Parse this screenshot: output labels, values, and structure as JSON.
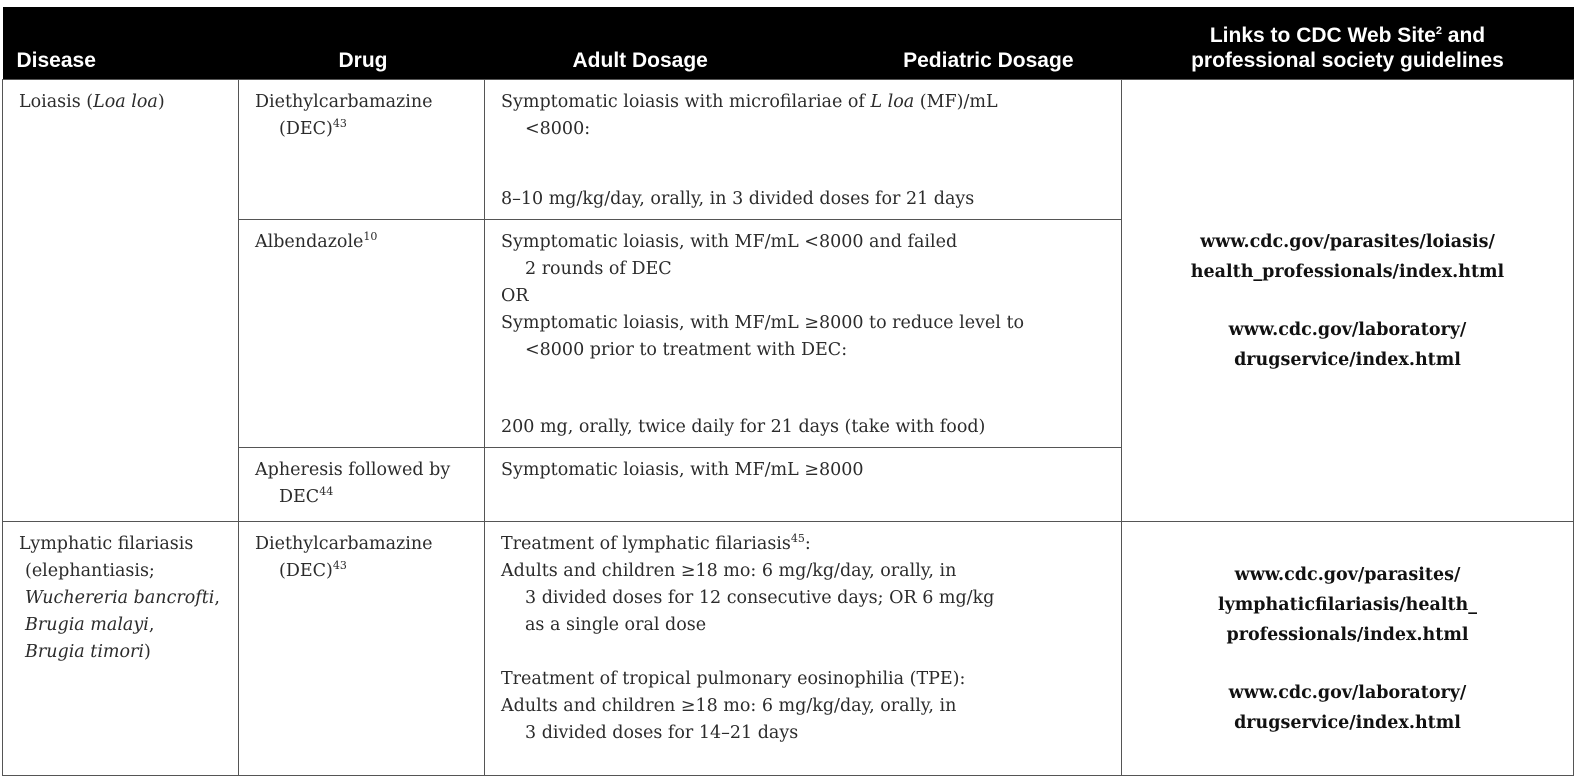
{
  "headers": {
    "disease": "Disease",
    "drug": "Drug",
    "adult": "Adult Dosage",
    "pediatric": "Pediatric Dosage",
    "links_line1_pre": "Links to CDC Web Site",
    "links_line1_sup": "2",
    "links_line1_post": " and",
    "links_line2": "professional society guidelines"
  },
  "loiasis": {
    "disease_name": "Loiasis (",
    "disease_latin": "Loa loa",
    "disease_close": ")",
    "rows": [
      {
        "drug_line1": "Diethylcarbamazine",
        "drug_line2": "(DEC)",
        "drug_sup": "43",
        "dose_line1_pre": "Symptomatic loiasis with microfilariae of ",
        "dose_line1_it": "L loa",
        "dose_line1_post": " (MF)/mL",
        "dose_line2": "<8000:",
        "dose_final": "8–10 mg/kg/day, orally, in 3 divided doses for 21 days"
      },
      {
        "drug_line1": "Albendazole",
        "drug_sup": "10",
        "dose_lines": [
          "Symptomatic loiasis, with MF/mL <8000 and failed",
          "2 rounds of DEC",
          "OR",
          "Symptomatic loiasis, with MF/mL ≥8000 to reduce level to",
          "<8000 prior to treatment with DEC:"
        ],
        "dose_final": "200 mg, orally, twice daily for 21 days (take with food)"
      },
      {
        "drug_line1": "Apheresis followed by",
        "drug_line2": "DEC",
        "drug_sup": "44",
        "dose_line1": "Symptomatic loiasis, with MF/mL ≥8000"
      }
    ],
    "links": [
      "www.cdc.gov/parasites/loiasis/",
      "health_professionals/index.html",
      "www.cdc.gov/laboratory/",
      "drugservice/index.html"
    ]
  },
  "filariasis": {
    "disease_line1": "Lymphatic filariasis",
    "disease_line2": "(elephantiasis;",
    "disease_line3": "Wuchereria bancrofti",
    "disease_line3_post": ",",
    "disease_line4": "Brugia malayi",
    "disease_line4_post": ",",
    "disease_line5": "Brugia timori",
    "disease_line5_post": ")",
    "drug_line1": "Diethylcarbamazine",
    "drug_line2": "(DEC)",
    "drug_sup": "43",
    "dose_head1": "Treatment of lymphatic filariasis",
    "dose_head1_sup": "45",
    "dose_head1_post": ":",
    "dose_a1": "Adults and children ≥18 mo: 6 mg/kg/day, orally, in",
    "dose_a2": "3 divided doses for 12 consecutive days; OR 6 mg/kg",
    "dose_a3": "as a single oral dose",
    "dose_head2": "Treatment of tropical pulmonary eosinophilia (TPE):",
    "dose_b1": "Adults and children ≥18 mo: 6 mg/kg/day, orally, in",
    "dose_b2": "3 divided doses for 14–21 days",
    "links": [
      "www.cdc.gov/parasites/",
      "lymphaticfilariasis/health_",
      "professionals/index.html",
      "www.cdc.gov/laboratory/",
      "drugservice/index.html"
    ]
  }
}
